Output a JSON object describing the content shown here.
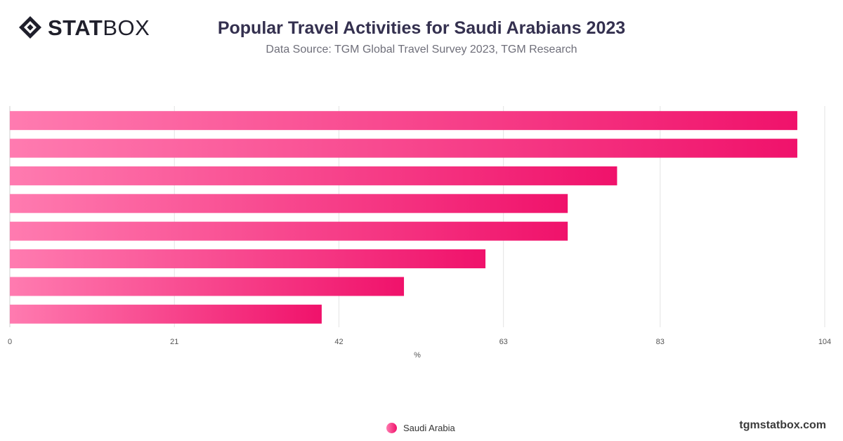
{
  "brand": {
    "bold": "STAT",
    "light": "BOX"
  },
  "header": {
    "title": "Popular Travel Activities for Saudi Arabians 2023",
    "subtitle": "Data Source: TGM Global Travel Survey 2023, TGM Research"
  },
  "footer": {
    "site": "tgmstatbox.com"
  },
  "colors": {
    "bar_start": "#ff7bb0",
    "bar_end": "#f0126b",
    "grid": "#e3e3e3"
  },
  "chart_data": {
    "type": "bar",
    "orientation": "horizontal",
    "title": "Popular Travel Activities for Saudi Arabians 2023",
    "xlabel": "%",
    "ylabel": "",
    "xlim": [
      0,
      104
    ],
    "ticks": [
      0,
      21,
      42,
      63,
      83,
      104
    ],
    "grid": true,
    "legend_position": "bottom",
    "series": [
      {
        "name": "Saudi Arabia",
        "values": [
          100.5,
          100.5,
          77.5,
          71.2,
          71.2,
          60.7,
          50.3,
          39.8
        ]
      }
    ]
  }
}
